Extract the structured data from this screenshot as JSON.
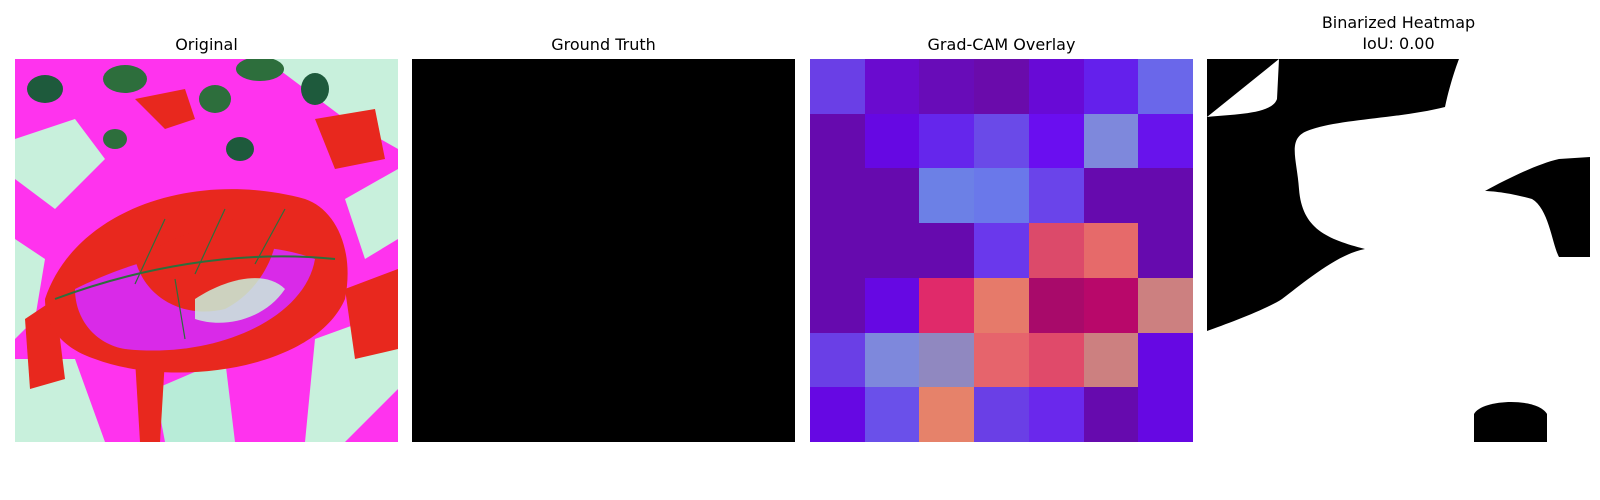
{
  "panels": [
    {
      "title": "Original"
    },
    {
      "title": "Ground Truth"
    },
    {
      "title": "Grad-CAM Overlay"
    },
    {
      "title_line1": "Binarized Heatmap",
      "title_line2": "IoU: 0.00"
    }
  ],
  "overlay": {
    "rows": 7,
    "cols": 7,
    "colors": [
      [
        "#6a3fe6",
        "#6a0bcf",
        "#680cb8",
        "#6a0bab",
        "#680ad6",
        "#6420ec",
        "#6a67ea"
      ],
      [
        "#660aae",
        "#6608e3",
        "#6526ec",
        "#6a4ae8",
        "#6a0ef0",
        "#7e88dc",
        "#6813ec"
      ],
      [
        "#660aae",
        "#660aae",
        "#6c80e6",
        "#6a78ea",
        "#6a44ea",
        "#660aae",
        "#660aae"
      ],
      [
        "#660aae",
        "#660aae",
        "#660aae",
        "#6a38ec",
        "#dc4a6a",
        "#e66a6a",
        "#660aae"
      ],
      [
        "#660aae",
        "#6608e3",
        "#e02a6a",
        "#e67a6a",
        "#a80a6a",
        "#b8086a",
        "#cc8080"
      ],
      [
        "#6a3fe6",
        "#7e88dc",
        "#9088c0",
        "#e6646c",
        "#e04a6a",
        "#cc8080",
        "#6608e3"
      ],
      [
        "#6608e3",
        "#6a50ea",
        "#e6826a",
        "#6a3fe6",
        "#6a28ec",
        "#660aae",
        "#6608e3"
      ]
    ]
  }
}
